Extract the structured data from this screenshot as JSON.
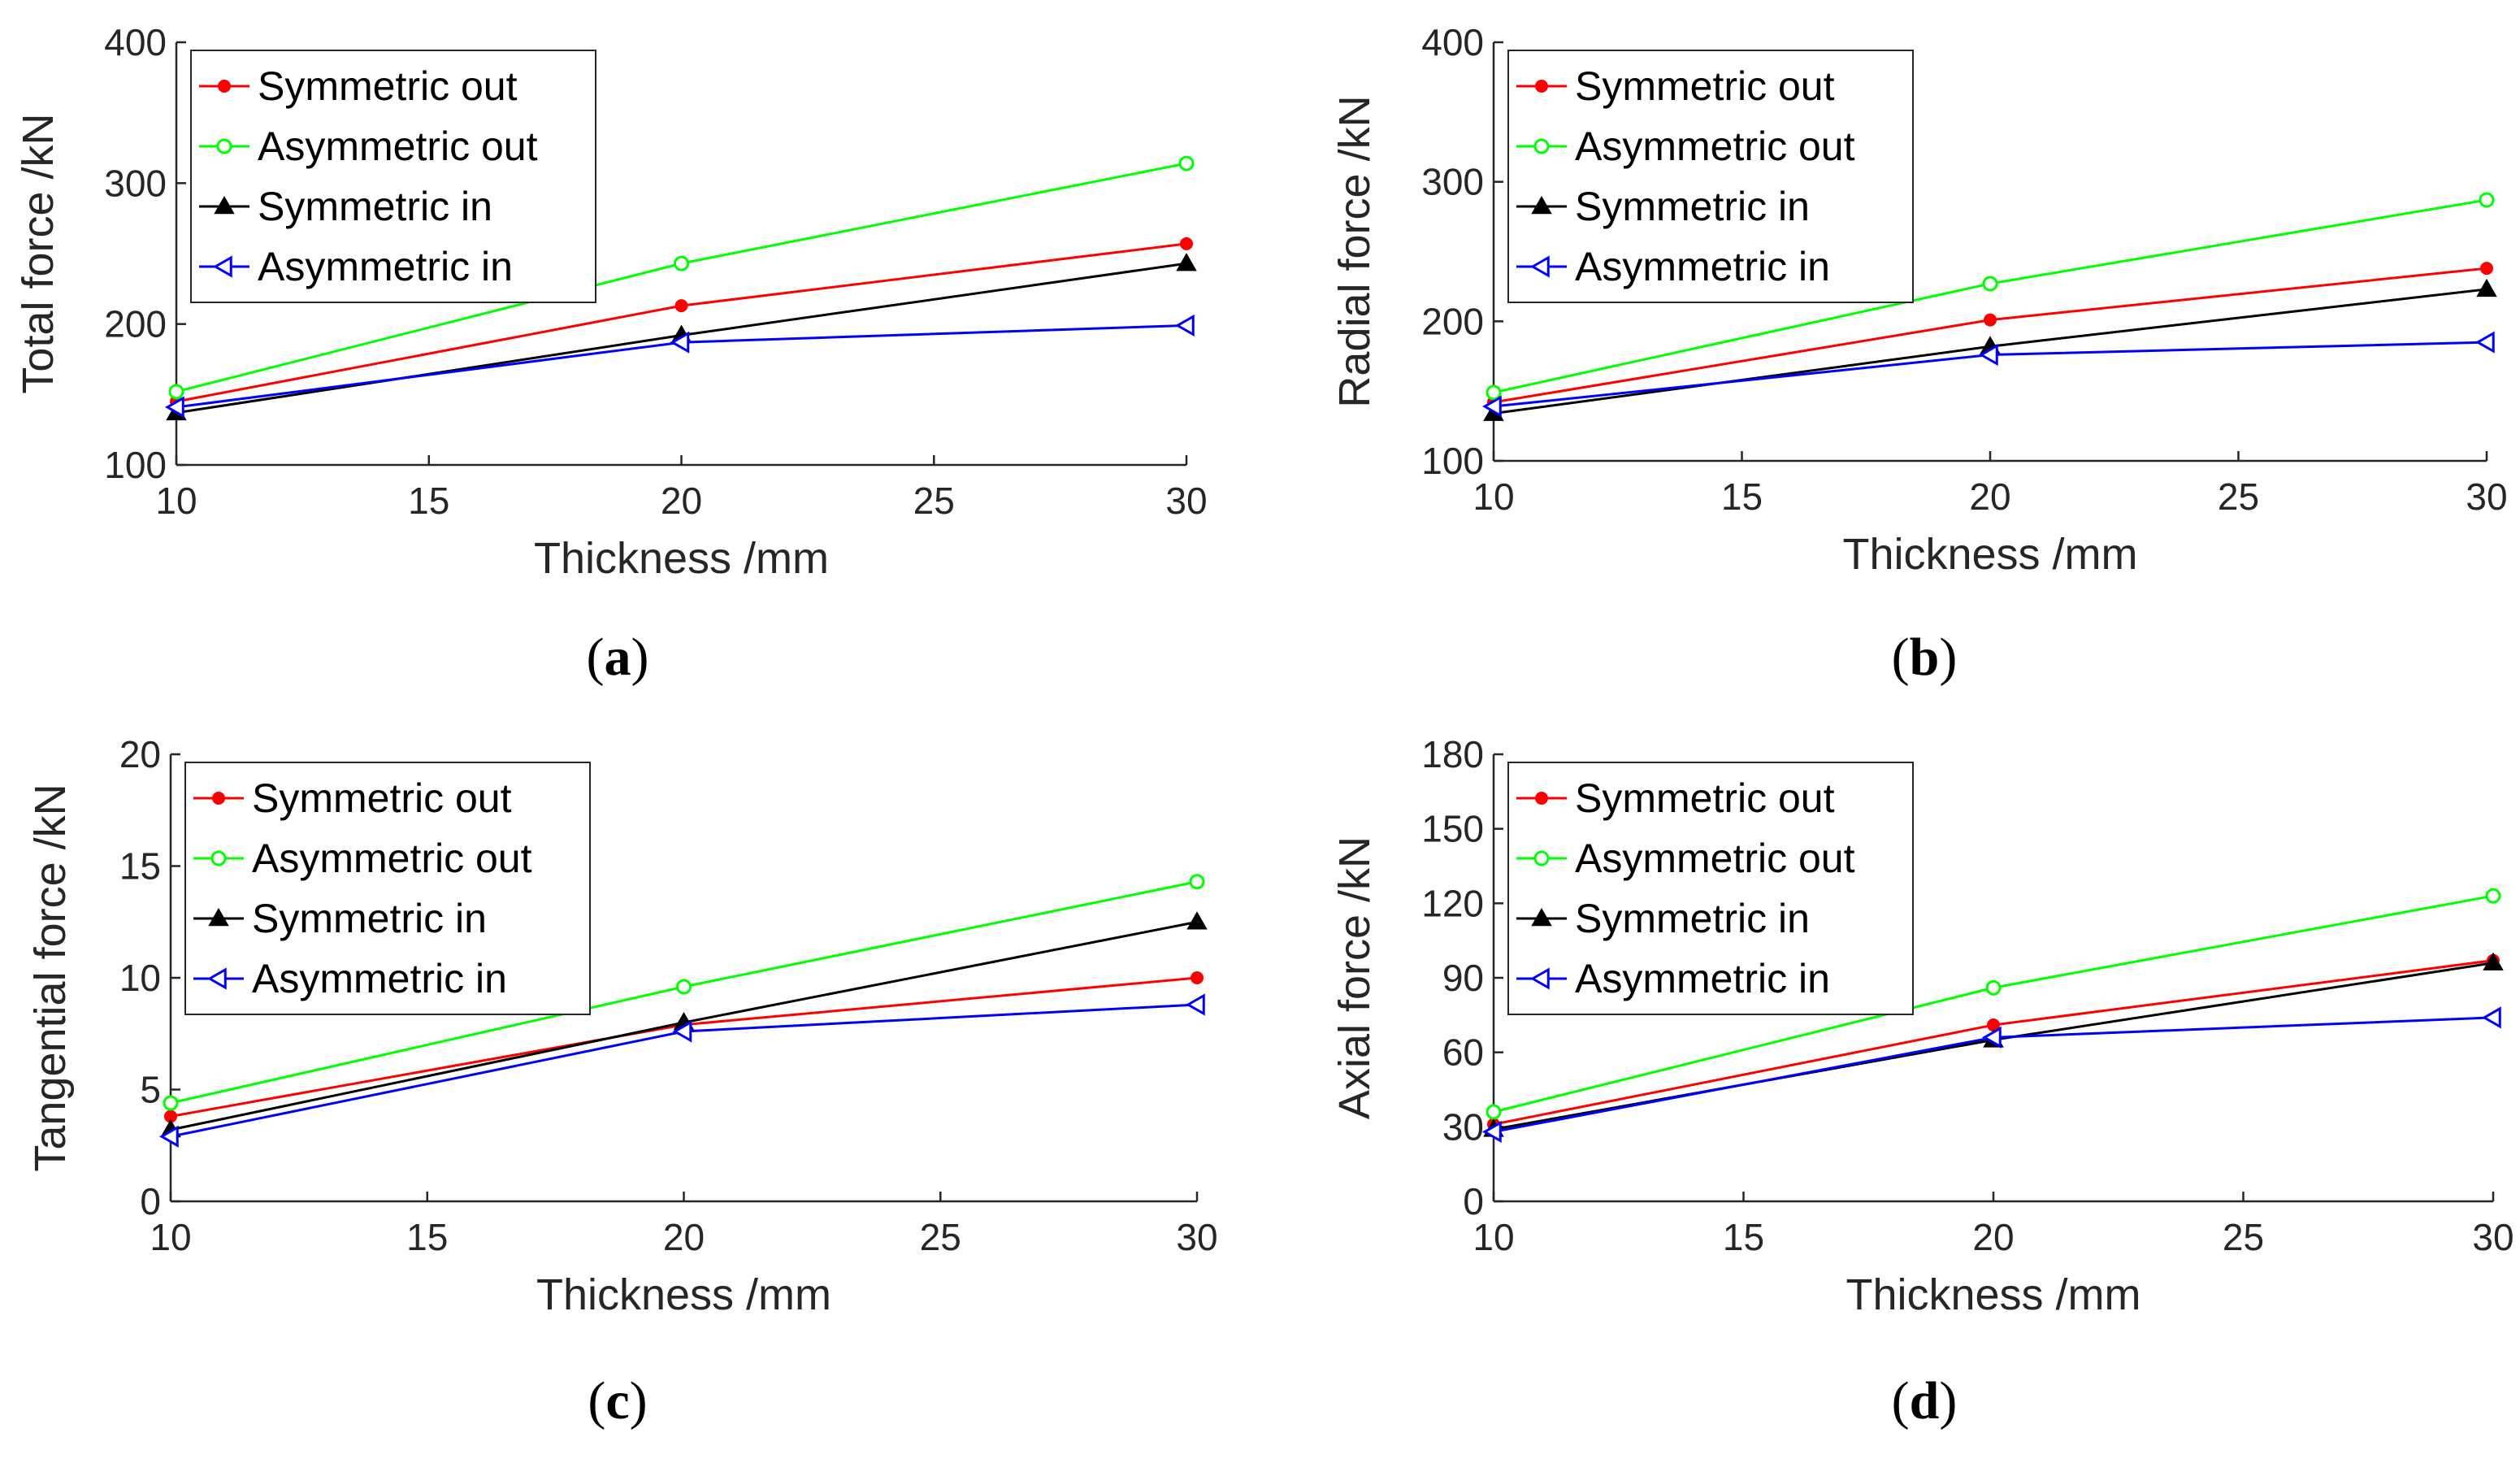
{
  "colors": {
    "symmetric_out": "#ff0000",
    "asymmetric_out": "#00ff00",
    "symmetric_in": "#000000",
    "asymmetric_in": "#0000ff"
  },
  "chart_data": [
    {
      "id": "a",
      "type": "line",
      "panel_label": "a",
      "xlabel": "Thickness /mm",
      "ylabel": "Total force /kN",
      "x": [
        10,
        20,
        30
      ],
      "xlim": [
        10,
        30
      ],
      "xticks": [
        10,
        15,
        20,
        25,
        30
      ],
      "ylim": [
        100,
        400
      ],
      "yticks": [
        100,
        200,
        300,
        400
      ],
      "legend_location": "top-left",
      "series": [
        {
          "name": "Symmetric out",
          "color_key": "symmetric_out",
          "marker": "dot",
          "values": [
            145,
            213,
            257
          ]
        },
        {
          "name": "Asymmetric out",
          "color_key": "asymmetric_out",
          "marker": "circle",
          "values": [
            152,
            243,
            314
          ]
        },
        {
          "name": "Symmetric in",
          "color_key": "symmetric_in",
          "marker": "triangle-up",
          "values": [
            137,
            192,
            243
          ]
        },
        {
          "name": "Asymmetric in",
          "color_key": "asymmetric_in",
          "marker": "triangle-left",
          "values": [
            141,
            187,
            199
          ]
        }
      ]
    },
    {
      "id": "b",
      "type": "line",
      "panel_label": "b",
      "xlabel": "Thickness /mm",
      "ylabel": "Radial force /kN",
      "x": [
        10,
        20,
        30
      ],
      "xlim": [
        10,
        30
      ],
      "xticks": [
        10,
        15,
        20,
        25,
        30
      ],
      "ylim": [
        100,
        400
      ],
      "yticks": [
        100,
        200,
        300,
        400
      ],
      "legend_location": "top-left",
      "series": [
        {
          "name": "Symmetric out",
          "color_key": "symmetric_out",
          "marker": "dot",
          "values": [
            142,
            201,
            238
          ]
        },
        {
          "name": "Asymmetric out",
          "color_key": "asymmetric_out",
          "marker": "circle",
          "values": [
            149,
            227,
            287
          ]
        },
        {
          "name": "Symmetric in",
          "color_key": "symmetric_in",
          "marker": "triangle-up",
          "values": [
            134,
            182,
            223
          ]
        },
        {
          "name": "Asymmetric in",
          "color_key": "asymmetric_in",
          "marker": "triangle-left",
          "values": [
            139,
            176,
            185
          ]
        }
      ]
    },
    {
      "id": "c",
      "type": "line",
      "panel_label": "c",
      "xlabel": "Thickness /mm",
      "ylabel": "Tangential force /kN",
      "x": [
        10,
        20,
        30
      ],
      "xlim": [
        10,
        30
      ],
      "xticks": [
        10,
        15,
        20,
        25,
        30
      ],
      "ylim": [
        0,
        20
      ],
      "yticks": [
        0,
        5,
        10,
        15,
        20
      ],
      "legend_location": "top-left",
      "series": [
        {
          "name": "Symmetric out",
          "color_key": "symmetric_out",
          "marker": "dot",
          "values": [
            3.8,
            7.9,
            10.0
          ]
        },
        {
          "name": "Asymmetric out",
          "color_key": "asymmetric_out",
          "marker": "circle",
          "values": [
            4.4,
            9.6,
            14.3
          ]
        },
        {
          "name": "Symmetric in",
          "color_key": "symmetric_in",
          "marker": "triangle-up",
          "values": [
            3.2,
            8.0,
            12.5
          ]
        },
        {
          "name": "Asymmetric in",
          "color_key": "asymmetric_in",
          "marker": "triangle-left",
          "values": [
            2.9,
            7.6,
            8.8
          ]
        }
      ]
    },
    {
      "id": "d",
      "type": "line",
      "panel_label": "d",
      "xlabel": "Thickness /mm",
      "ylabel": "Axial force /kN",
      "x": [
        10,
        20,
        30
      ],
      "xlim": [
        10,
        30
      ],
      "xticks": [
        10,
        15,
        20,
        25,
        30
      ],
      "ylim": [
        0,
        180
      ],
      "yticks": [
        0,
        30,
        60,
        90,
        120,
        150,
        180
      ],
      "legend_location": "top-left",
      "series": [
        {
          "name": "Symmetric out",
          "color_key": "symmetric_out",
          "marker": "dot",
          "values": [
            31,
            71,
            97
          ]
        },
        {
          "name": "Asymmetric out",
          "color_key": "asymmetric_out",
          "marker": "circle",
          "values": [
            36,
            86,
            123
          ]
        },
        {
          "name": "Symmetric in",
          "color_key": "symmetric_in",
          "marker": "triangle-up",
          "values": [
            29,
            65,
            96
          ]
        },
        {
          "name": "Asymmetric in",
          "color_key": "asymmetric_in",
          "marker": "triangle-left",
          "values": [
            28,
            66,
            74
          ]
        }
      ]
    }
  ]
}
